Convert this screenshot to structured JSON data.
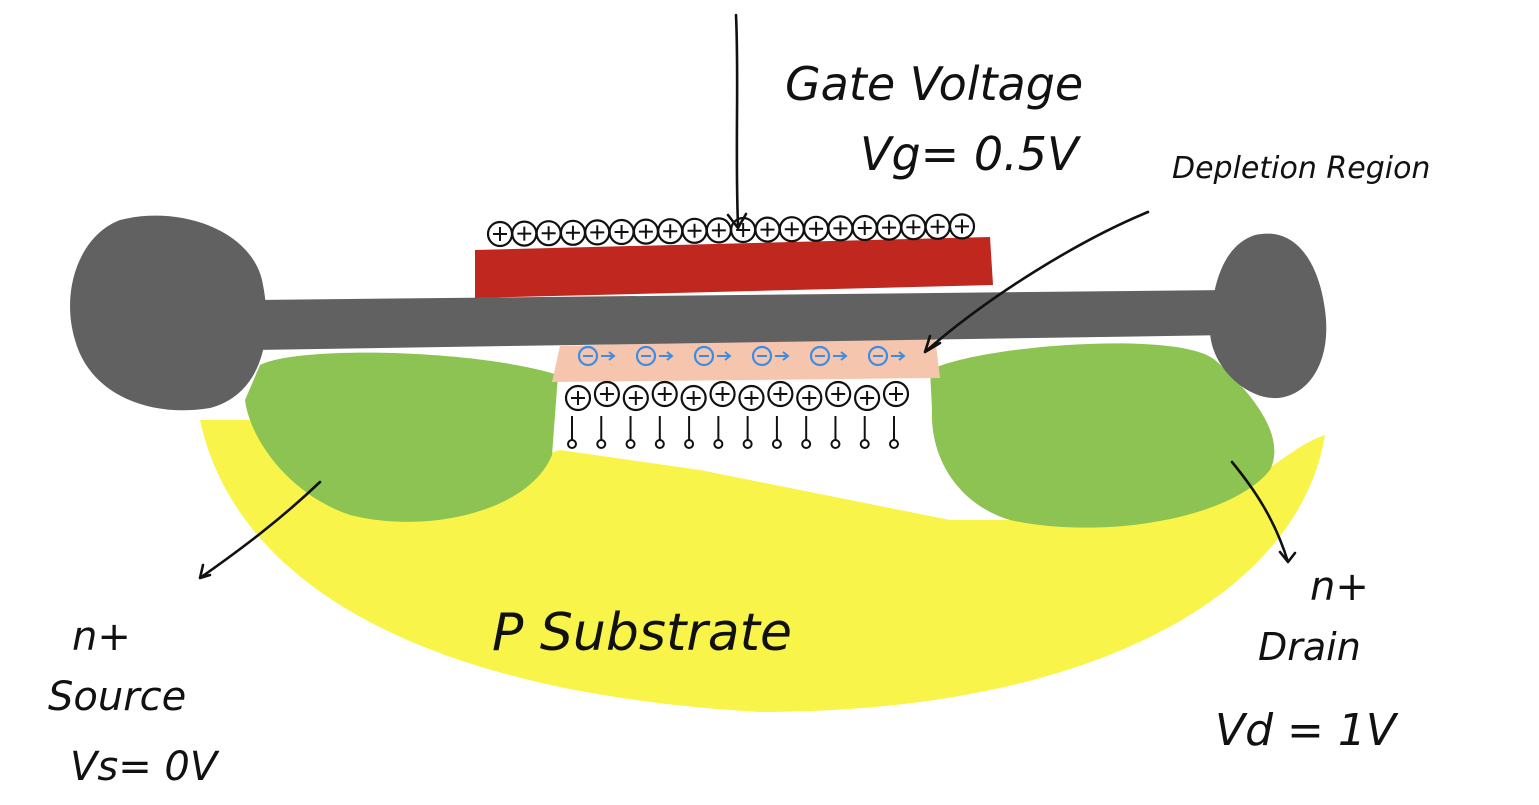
{
  "labels": {
    "gate_title": "Gate Voltage",
    "gate_value": "Vg= 0.5V",
    "depletion": "Depletion Region",
    "substrate": "P Substrate",
    "source_type": "n+",
    "source_name": "Source",
    "source_value": "Vs= 0V",
    "drain_type": "n+",
    "drain_name": "Drain",
    "drain_value": "Vd = 1V"
  },
  "charges": {
    "gate_plus_count": 20,
    "channel_electron_count": 6,
    "depletion_plus_count": 12,
    "acceptor_count": 12
  },
  "colors": {
    "substrate": "#f9f44a",
    "n_region": "#8dc353",
    "oxide_metal": "#616161",
    "gate": "#c0281f",
    "depletion": "#f5c6ad",
    "electron": "#3c8ce6",
    "ink": "#111111"
  }
}
